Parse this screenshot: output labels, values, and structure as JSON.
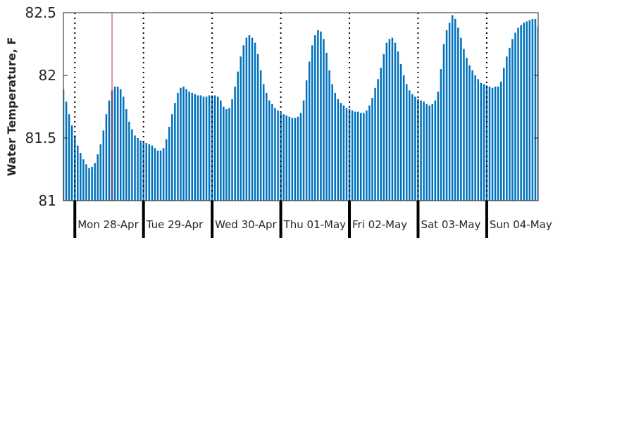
{
  "chart_data": {
    "type": "bar",
    "title": "",
    "xlabel": "",
    "ylabel": "Water Temperature, F",
    "ylim": [
      81,
      82.5
    ],
    "yticks": [
      81,
      81.5,
      82,
      82.5
    ],
    "ytick_labels": [
      "81",
      "81.5",
      "82",
      "82.5"
    ],
    "x_unit": "hour",
    "x_range": [
      "2025-04-27T20:00",
      "2025-05-04T18:00"
    ],
    "x_step_hours": 1,
    "day_labels": [
      "Mon 28-Apr",
      "Tue 29-Apr",
      "Wed 30-Apr",
      "Thu 01-May",
      "Fri 02-May",
      "Sat 03-May",
      "Sun 04-May"
    ],
    "day_boundaries": [
      "2025-04-28T00:00",
      "2025-04-29T00:00",
      "2025-04-30T00:00",
      "2025-05-01T00:00",
      "2025-05-02T00:00",
      "2025-05-03T00:00",
      "2025-05-04T00:00"
    ],
    "day_boundary_line_style": "dotted",
    "marker_line": "2025-04-28T13:00",
    "bar_color": "#0072bd",
    "marker_color": "#d62728",
    "grid": false,
    "values": [
      81.89,
      81.79,
      81.69,
      81.6,
      81.52,
      81.44,
      81.38,
      81.33,
      81.29,
      81.26,
      81.27,
      81.3,
      81.37,
      81.45,
      81.56,
      81.69,
      81.8,
      81.88,
      81.91,
      81.91,
      81.89,
      81.83,
      81.73,
      81.63,
      81.57,
      81.52,
      81.5,
      81.48,
      81.47,
      81.46,
      81.45,
      81.44,
      81.42,
      81.4,
      81.4,
      81.42,
      81.49,
      81.59,
      81.69,
      81.78,
      81.86,
      81.9,
      81.91,
      81.89,
      81.87,
      81.86,
      81.85,
      81.84,
      81.84,
      81.83,
      81.83,
      81.84,
      81.84,
      81.84,
      81.83,
      81.8,
      81.75,
      81.73,
      81.74,
      81.81,
      81.91,
      82.03,
      82.15,
      82.24,
      82.3,
      82.32,
      82.3,
      82.26,
      82.17,
      82.04,
      81.93,
      81.86,
      81.8,
      81.77,
      81.74,
      81.72,
      81.7,
      81.69,
      81.68,
      81.67,
      81.66,
      81.66,
      81.67,
      81.7,
      81.8,
      81.96,
      82.11,
      82.24,
      82.32,
      82.36,
      82.35,
      82.29,
      82.18,
      82.04,
      81.93,
      81.86,
      81.81,
      81.78,
      81.76,
      81.74,
      81.73,
      81.72,
      81.71,
      81.71,
      81.7,
      81.7,
      81.72,
      81.76,
      81.82,
      81.9,
      81.97,
      82.06,
      82.17,
      82.26,
      82.29,
      82.3,
      82.26,
      82.19,
      82.09,
      82.0,
      81.93,
      81.88,
      81.85,
      81.83,
      81.81,
      81.8,
      81.79,
      81.77,
      81.76,
      81.77,
      81.8,
      81.87,
      82.05,
      82.25,
      82.36,
      82.42,
      82.48,
      82.45,
      82.38,
      82.3,
      82.21,
      82.14,
      82.08,
      82.04,
      82.0,
      81.97,
      81.94,
      81.93,
      81.92,
      81.91,
      81.9,
      81.91,
      81.91,
      81.95,
      82.06,
      82.15,
      82.22,
      82.29,
      82.34,
      82.38,
      82.4,
      82.42,
      82.43,
      82.44,
      82.45,
      82.45,
      82.39
    ]
  }
}
